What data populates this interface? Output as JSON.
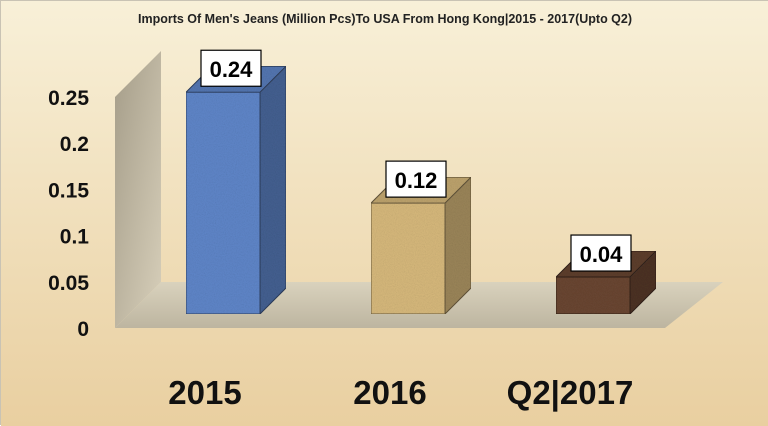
{
  "chart_data": {
    "type": "bar",
    "title": "Imports Of Men's Jeans (Million Pcs)To USA From Hong Kong|2015 - 2017(Upto Q2)",
    "categories": [
      "2015",
      "2016",
      "Q2|2017"
    ],
    "values": [
      0.24,
      0.12,
      0.04
    ],
    "data_labels": [
      "0.24",
      "0.12",
      "0.04"
    ],
    "xlabel": "",
    "ylabel": "",
    "ylim": [
      0,
      0.25
    ],
    "yticks": [
      "0",
      "0.05",
      "0.1",
      "0.15",
      "0.2",
      "0.25"
    ],
    "ytick_values": [
      0,
      0.05,
      0.1,
      0.15,
      0.2,
      0.25
    ],
    "grid": false,
    "legend": "none",
    "bar_colors": [
      "#5f86c9",
      "#d7b97c",
      "#6a4632"
    ],
    "background_colors": [
      "#f8f0d8",
      "#e9cfa0"
    ]
  }
}
